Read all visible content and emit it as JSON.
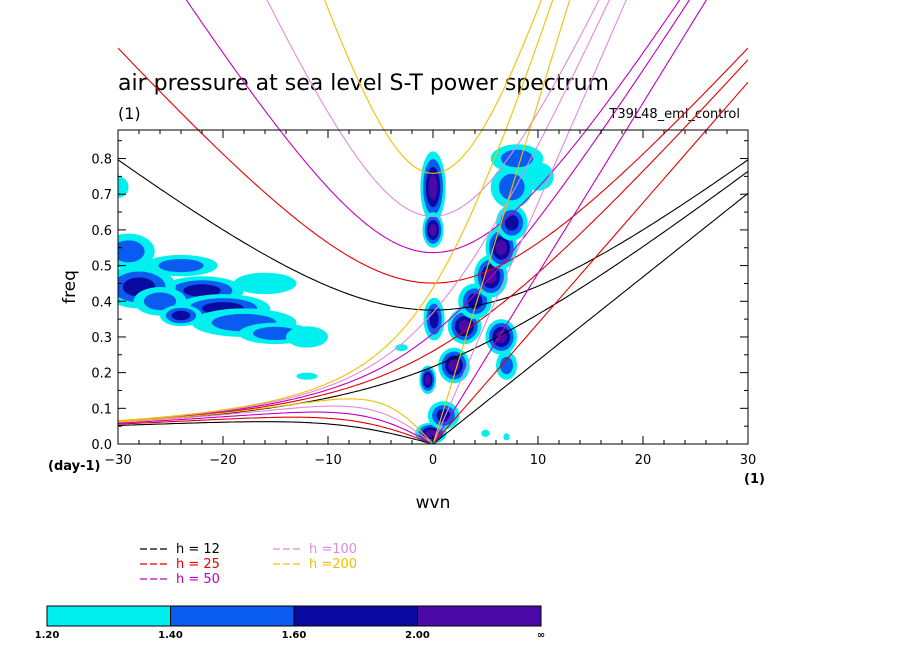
{
  "title": "air pressure at sea level S-T power spectrum",
  "subtitle_left": "(1)",
  "run_name": "T39L48_eml_control",
  "chart_data": {
    "type": "heatmap",
    "title": "air pressure at sea level S-T power spectrum",
    "xlabel": "wvn",
    "ylabel": "freq",
    "x_unit_label": "(1)",
    "y_unit_label": "(day-1)",
    "xlim": [
      -30,
      30
    ],
    "ylim": [
      0,
      0.88
    ],
    "x_ticks": [
      -30,
      -20,
      -10,
      0,
      10,
      20,
      30
    ],
    "y_ticks": [
      0.0,
      0.1,
      0.2,
      0.3,
      0.4,
      0.5,
      0.6,
      0.7,
      0.8
    ],
    "dispersion_curves": [
      {
        "name": "h = 12",
        "color": "#000000"
      },
      {
        "name": "h = 25",
        "color": "#e00000"
      },
      {
        "name": "h = 50",
        "color": "#c000c0"
      },
      {
        "name": "h =100",
        "color": "#e08ae0"
      },
      {
        "name": "h =200",
        "color": "#f0c000"
      }
    ],
    "contour_levels": [
      "1.20",
      "1.40",
      "1.60",
      "2.00",
      "∞"
    ],
    "contour_colors": [
      "#00f0f0",
      "#0a5cf0",
      "#0a0aa0",
      "#4b0aa8"
    ],
    "power_blobs": [
      {
        "x": 0.0,
        "y": 0.72,
        "dx": 1.2,
        "dy": 0.1,
        "level": 4
      },
      {
        "x": 0.0,
        "y": 0.6,
        "dx": 1.0,
        "dy": 0.05,
        "level": 4
      },
      {
        "x": 0.1,
        "y": 0.35,
        "dx": 1.0,
        "dy": 0.06,
        "level": 3
      },
      {
        "x": -0.5,
        "y": 0.18,
        "dx": 0.8,
        "dy": 0.04,
        "level": 4
      },
      {
        "x": -0.2,
        "y": 0.03,
        "dx": 1.5,
        "dy": 0.03,
        "level": 4
      },
      {
        "x": 1.0,
        "y": 0.08,
        "dx": 1.5,
        "dy": 0.04,
        "level": 3
      },
      {
        "x": 2.0,
        "y": 0.22,
        "dx": 1.5,
        "dy": 0.05,
        "level": 4
      },
      {
        "x": 3.0,
        "y": 0.33,
        "dx": 1.6,
        "dy": 0.05,
        "level": 4
      },
      {
        "x": 4.0,
        "y": 0.4,
        "dx": 1.6,
        "dy": 0.05,
        "level": 3
      },
      {
        "x": 5.5,
        "y": 0.47,
        "dx": 1.6,
        "dy": 0.06,
        "level": 4
      },
      {
        "x": 6.5,
        "y": 0.55,
        "dx": 1.5,
        "dy": 0.06,
        "level": 4
      },
      {
        "x": 7.5,
        "y": 0.62,
        "dx": 1.5,
        "dy": 0.05,
        "level": 3
      },
      {
        "x": 7.5,
        "y": 0.72,
        "dx": 2.0,
        "dy": 0.06,
        "level": 2
      },
      {
        "x": 8.0,
        "y": 0.8,
        "dx": 2.5,
        "dy": 0.04,
        "level": 2
      },
      {
        "x": 6.5,
        "y": 0.3,
        "dx": 1.5,
        "dy": 0.05,
        "level": 4
      },
      {
        "x": 7.0,
        "y": 0.22,
        "dx": 1.0,
        "dy": 0.04,
        "level": 2
      },
      {
        "x": 10.0,
        "y": 0.75,
        "dx": 1.5,
        "dy": 0.04,
        "level": 1
      },
      {
        "x": -22.0,
        "y": 0.43,
        "dx": 4.0,
        "dy": 0.04,
        "level": 3
      },
      {
        "x": -20.0,
        "y": 0.38,
        "dx": 4.5,
        "dy": 0.04,
        "level": 3
      },
      {
        "x": -18.0,
        "y": 0.34,
        "dx": 5.0,
        "dy": 0.04,
        "level": 2
      },
      {
        "x": -15.0,
        "y": 0.31,
        "dx": 3.5,
        "dy": 0.03,
        "level": 2
      },
      {
        "x": -29.0,
        "y": 0.54,
        "dx": 2.5,
        "dy": 0.05,
        "level": 2
      },
      {
        "x": -28.0,
        "y": 0.44,
        "dx": 3.5,
        "dy": 0.06,
        "level": 3
      },
      {
        "x": -26.0,
        "y": 0.4,
        "dx": 2.5,
        "dy": 0.04,
        "level": 2
      },
      {
        "x": -24.0,
        "y": 0.5,
        "dx": 3.5,
        "dy": 0.03,
        "level": 2
      },
      {
        "x": -16.0,
        "y": 0.45,
        "dx": 3.0,
        "dy": 0.03,
        "level": 1
      },
      {
        "x": -12.0,
        "y": 0.3,
        "dx": 2.0,
        "dy": 0.03,
        "level": 1
      },
      {
        "x": -24.0,
        "y": 0.36,
        "dx": 2.0,
        "dy": 0.03,
        "level": 3
      },
      {
        "x": -30.0,
        "y": 0.72,
        "dx": 1.0,
        "dy": 0.03,
        "level": 1
      },
      {
        "x": -12.0,
        "y": 0.19,
        "dx": 1.0,
        "dy": 0.01,
        "level": 1
      },
      {
        "x": -3.0,
        "y": 0.27,
        "dx": 0.6,
        "dy": 0.01,
        "level": 1
      },
      {
        "x": 5.0,
        "y": 0.03,
        "dx": 0.4,
        "dy": 0.01,
        "level": 1
      },
      {
        "x": 7.0,
        "y": 0.02,
        "dx": 0.3,
        "dy": 0.01,
        "level": 1
      }
    ]
  },
  "legend": {
    "items": [
      {
        "label": "h = 12",
        "color": "#000000"
      },
      {
        "label": "h = 25",
        "color": "#e00000"
      },
      {
        "label": "h = 50",
        "color": "#c000c0"
      },
      {
        "label": "h =100",
        "color": "#e08ae0"
      },
      {
        "label": "h =200",
        "color": "#f0c000"
      }
    ]
  },
  "colorbar": {
    "labels": [
      "1.20",
      "1.40",
      "1.60",
      "2.00",
      "∞"
    ],
    "colors": [
      "#00f0f0",
      "#0a5cf0",
      "#0a0aa0",
      "#4b0aa8"
    ]
  }
}
